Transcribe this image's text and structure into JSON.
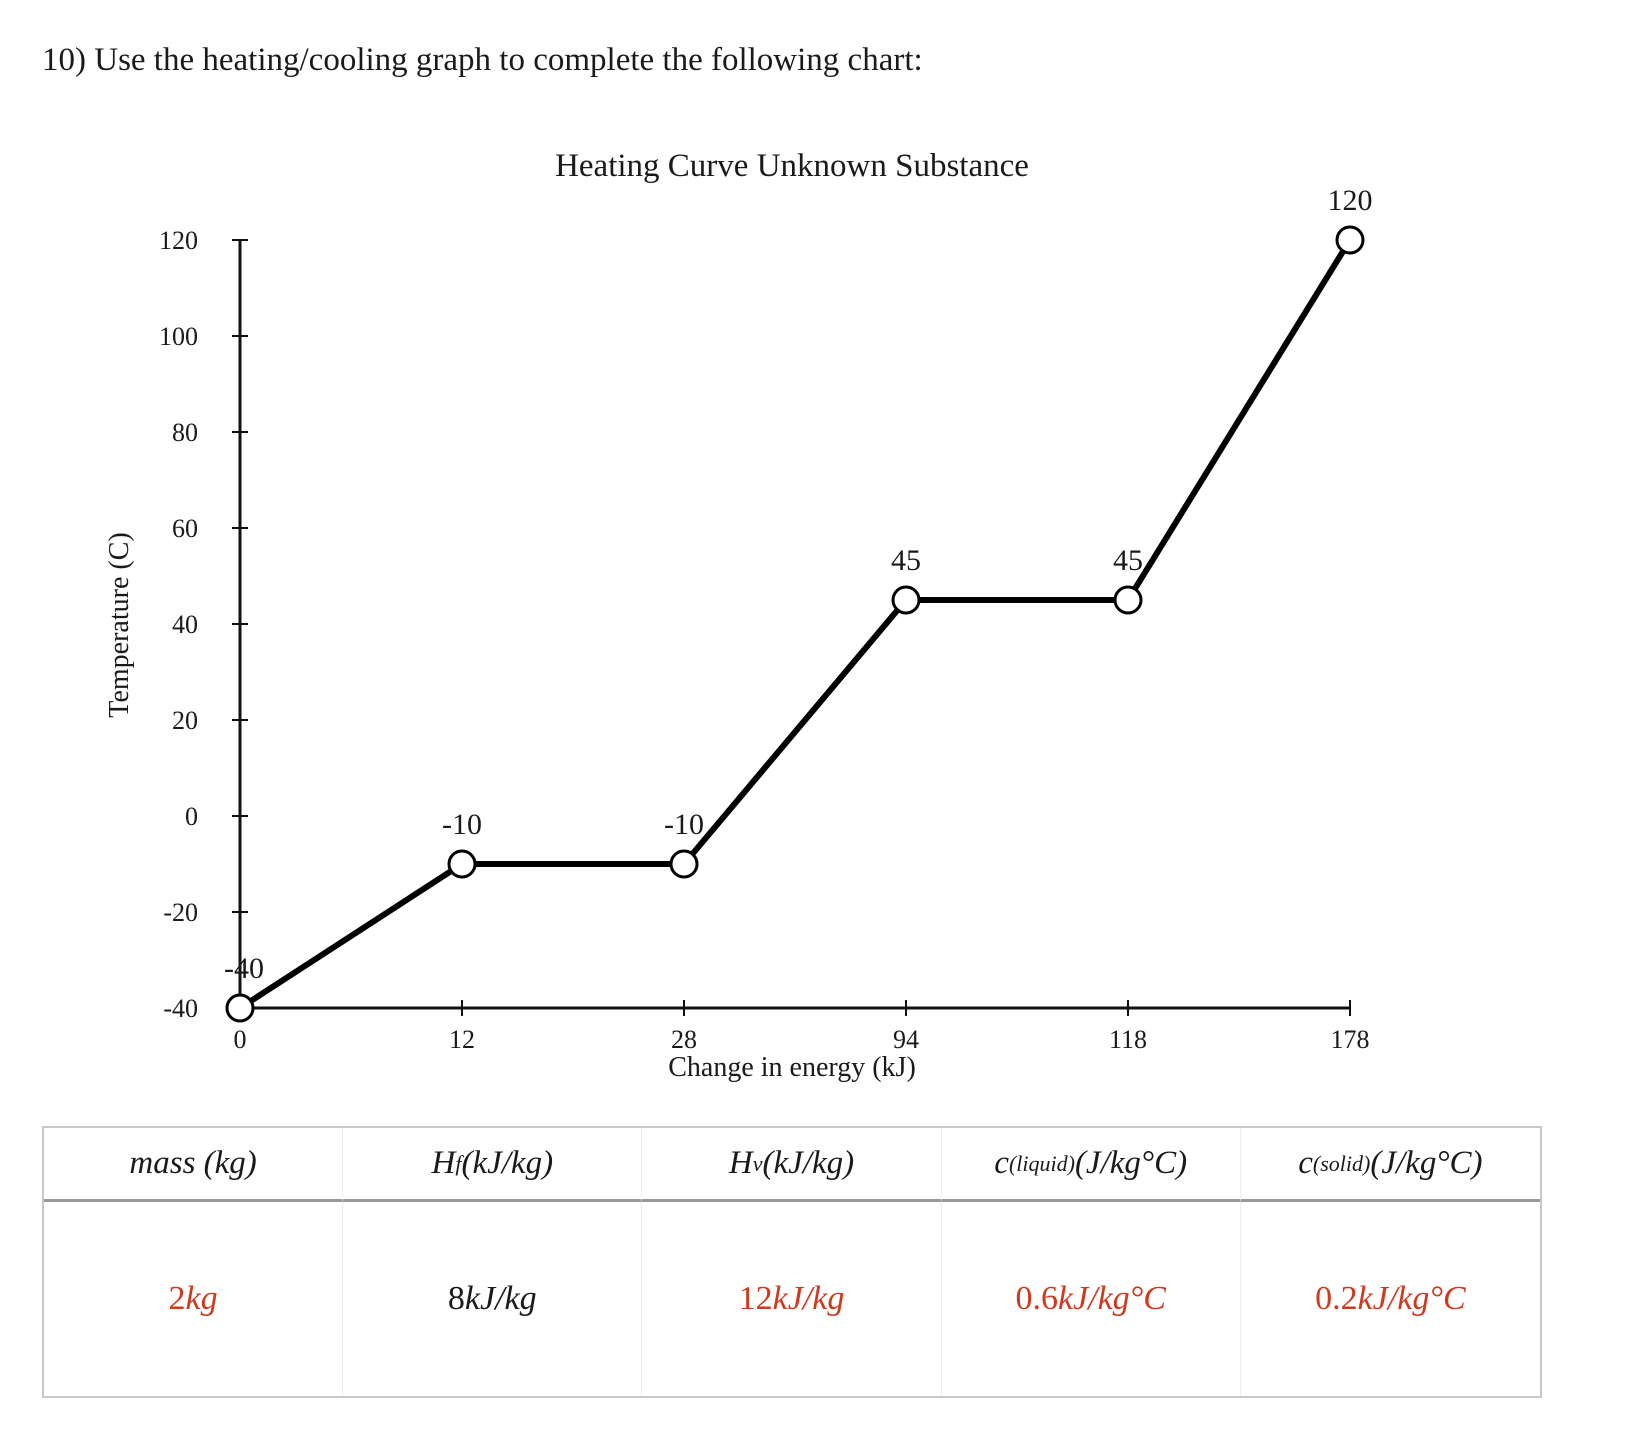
{
  "question": "10) Use the heating/cooling graph to complete the following chart:",
  "chart_data": {
    "type": "line",
    "title": "Heating Curve Unknown Substance",
    "xlabel": "Change in energy (kJ)",
    "ylabel": "Temperature (C)",
    "x_categories": [
      "0",
      "12",
      "28",
      "94",
      "118",
      "178"
    ],
    "y_ticks": [
      120,
      100,
      80,
      60,
      40,
      20,
      0,
      -20,
      -40
    ],
    "ylim": [
      -40,
      120
    ],
    "series": [
      {
        "x": [
          "0",
          "12",
          "28",
          "94",
          "118",
          "178"
        ],
        "y": [
          -40,
          -10,
          -10,
          45,
          45,
          120
        ],
        "labels": [
          "-40",
          "-10",
          "-10",
          "45",
          "45",
          "120"
        ]
      }
    ],
    "grid": false,
    "marker": "open-circle"
  },
  "table": {
    "headers": [
      {
        "main": "mass (kg)",
        "sub": ""
      },
      {
        "main": "H",
        "sub": "f",
        "tail": " (kJ/kg)"
      },
      {
        "main": "H",
        "sub": "v",
        "tail": " (kJ/kg)"
      },
      {
        "main": "c",
        "sub": "(liquid)",
        "tail": " (J/kg°C)"
      },
      {
        "main": "c",
        "sub": "(solid)",
        "tail": " (J/kg°C)"
      }
    ],
    "values": [
      {
        "num": "2",
        "unit": " kg",
        "color": "red"
      },
      {
        "num": "8",
        "unit": " kJ/kg",
        "color": "black"
      },
      {
        "num": "12",
        "unit": " kJ/kg",
        "color": "red"
      },
      {
        "num": "0.6",
        "unit": " kJ/kg°C",
        "color": "red"
      },
      {
        "num": "0.2",
        "unit": " kJ/kg°C",
        "color": "red"
      }
    ]
  }
}
